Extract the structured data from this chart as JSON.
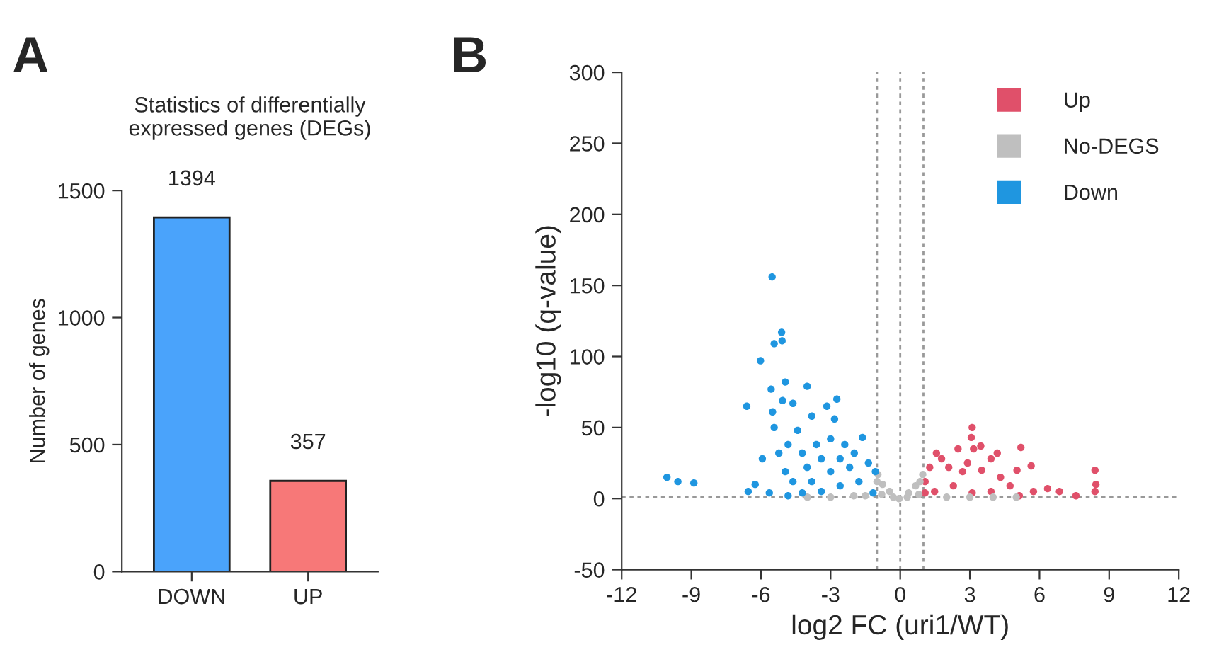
{
  "chart_data": [
    {
      "type": "bar",
      "title": "Statistics of differentially\nexpressed genes (DEGs)",
      "ylabel": "Number of genes",
      "categories": [
        "DOWN",
        "UP"
      ],
      "values": [
        1394,
        357
      ],
      "colors": [
        "#4aa3fb",
        "#f77878"
      ],
      "ylim": [
        0,
        1500
      ],
      "yticks": [
        0,
        500,
        1000,
        1500
      ],
      "data_labels": true,
      "grid": false,
      "annotations": [
        "A"
      ]
    },
    {
      "type": "scatter",
      "xlabel": "log2 FC (uri1/WT)",
      "ylabel": "-log10 (q-value)",
      "xlim": [
        -12,
        12
      ],
      "xticks": [
        -12,
        -9,
        -6,
        -3,
        0,
        3,
        6,
        9,
        12
      ],
      "ylim": [
        -50,
        300
      ],
      "yticks": [
        -50,
        0,
        50,
        100,
        150,
        200,
        250,
        300
      ],
      "grid": false,
      "legend": "top right",
      "marker": "circle",
      "annotations": [
        "B"
      ],
      "ref_lines": [
        {
          "axis": "x",
          "value": -1,
          "color": "#999999",
          "line_style": "dotted"
        },
        {
          "axis": "x",
          "value": 0,
          "color": "#999999",
          "line_style": "dotted"
        },
        {
          "axis": "x",
          "value": 1,
          "color": "#999999",
          "line_style": "dotted"
        },
        {
          "axis": "y",
          "value": 1,
          "color": "#999999",
          "line_style": "dotted"
        }
      ],
      "series": [
        {
          "name": "Up",
          "color": "#e0506a",
          "x": [
            3.1,
            3.06,
            3.47,
            3.16,
            2.49,
            1.56,
            5.2,
            4.18,
            3.91,
            5.64,
            5.03,
            8.39,
            8.43,
            8.39,
            7.57,
            6.86,
            6.35,
            5.74,
            1.07,
            1.27,
            2.09,
            2.69,
            3.51,
            4.32,
            4.73,
            2.29,
            1.48,
            3.1,
            3.91,
            5.13,
            1.78,
            2.9,
            1.07
          ],
          "values": [
            50,
            43,
            37,
            35,
            35,
            32,
            36,
            32,
            28,
            23,
            20,
            20,
            10,
            5,
            2,
            5,
            7,
            5,
            12,
            22,
            22,
            19,
            20,
            15,
            9,
            9,
            5,
            4,
            5,
            2,
            28,
            25,
            4
          ]
        },
        {
          "name": "No-DEGS",
          "color": "#bfbfbf",
          "x": [
            -0.96,
            -0.76,
            -0.46,
            -0.05,
            0.36,
            0.66,
            0.97,
            -4,
            -3,
            -2,
            -1.5,
            2,
            3,
            4,
            5,
            -0.8,
            0.8,
            -0.3,
            0.3,
            -1,
            0.85
          ],
          "values": [
            17,
            10,
            5,
            0,
            4,
            9,
            17,
            1,
            1,
            2,
            2,
            1,
            1,
            1,
            1,
            3,
            3,
            1,
            1,
            12,
            12
          ]
        },
        {
          "name": "Down",
          "color": "#1f96e0",
          "x": [
            -5.52,
            -5.11,
            -5.43,
            -5.09,
            -6.02,
            -6.61,
            -5.56,
            -4.95,
            -4.01,
            -5.07,
            -2.73,
            -3.16,
            -4.62,
            -5.5,
            -3.81,
            -2.83,
            -1.63,
            -5.43,
            -5.94,
            -10.05,
            -9.58,
            -8.89,
            -6.55,
            -6.25,
            -5.64,
            -4.95,
            -4.22,
            -3.0,
            -3.61,
            -2.39,
            -1.98,
            -1.37,
            -1.07,
            -1.78,
            -2.59,
            -3.4,
            -4.22,
            -4.83,
            -1.17,
            -4.01,
            -3.4,
            -2.59,
            -2.18,
            -3.0,
            -3.81,
            -4.62,
            -5.23,
            -4.42,
            -4.83
          ],
          "values": [
            156,
            117,
            109,
            111,
            97,
            65,
            77,
            82,
            79,
            69,
            70,
            65,
            67,
            61,
            58,
            56,
            43,
            50,
            28,
            15,
            12,
            11,
            5,
            10,
            4,
            19,
            32,
            42,
            38,
            38,
            32,
            25,
            19,
            12,
            9,
            5,
            4,
            2,
            4,
            22,
            28,
            28,
            22,
            19,
            12,
            12,
            32,
            48,
            38
          ]
        }
      ]
    }
  ]
}
